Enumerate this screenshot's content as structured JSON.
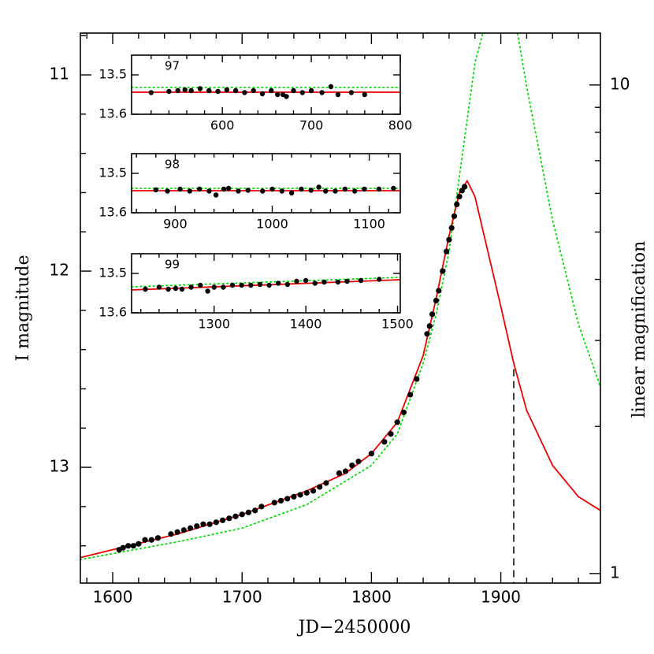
{
  "chart_data": [
    {
      "type": "line",
      "xlabel": "JD−2450000",
      "ylabel": "I magnitude",
      "y2label": "linear magnification",
      "xlim": [
        1575,
        1977
      ],
      "ylim": [
        13.59,
        10.787
      ],
      "xticks": [
        1600,
        1700,
        1800,
        1900
      ],
      "xminor": [
        1580,
        1620,
        1640,
        1660,
        1680,
        1720,
        1740,
        1760,
        1780,
        1820,
        1840,
        1860,
        1880,
        1920,
        1940,
        1960
      ],
      "yticks": [
        11,
        12,
        13
      ],
      "yminor": [
        10.8,
        11.2,
        11.4,
        11.6,
        11.8,
        12.2,
        12.4,
        12.6,
        12.8,
        13.2,
        13.4
      ],
      "y2scale": "log",
      "y2lim": [
        0.956,
        12.77
      ],
      "y2ticks": [
        1,
        10
      ],
      "y2minor": [
        2,
        3,
        4,
        5,
        6,
        7,
        8,
        9
      ],
      "series": [
        {
          "style": "dotted",
          "color": "#00dd00",
          "x": [
            1575,
            1600,
            1650,
            1700,
            1750,
            1800,
            1820,
            1840,
            1850,
            1860,
            1870,
            1880,
            1886,
            1900,
            1913,
            1920,
            1940,
            1960,
            1977
          ],
          "values": [
            13.47,
            13.44,
            13.38,
            13.31,
            13.19,
            12.99,
            12.83,
            12.47,
            12.22,
            11.9,
            11.42,
            10.94,
            10.79,
            null,
            10.79,
            11.06,
            11.74,
            12.27,
            12.59
          ]
        },
        {
          "style": "solid",
          "color": "#ee0000",
          "x": [
            1575,
            1600,
            1650,
            1700,
            1750,
            1780,
            1800,
            1820,
            1840,
            1850,
            1860,
            1868,
            1874,
            1880,
            1890,
            1900,
            1910,
            1920,
            1940,
            1960,
            1977
          ],
          "values": [
            13.46,
            13.42,
            13.34,
            13.24,
            13.12,
            13.03,
            12.93,
            12.77,
            12.43,
            12.14,
            11.82,
            11.6,
            11.54,
            11.62,
            11.9,
            12.18,
            12.47,
            12.71,
            12.99,
            13.15,
            13.22
          ]
        },
        {
          "style": "points",
          "color": "#000000",
          "x": [
            1605,
            1608,
            1612,
            1616,
            1620,
            1625,
            1630,
            1635,
            1645,
            1650,
            1655,
            1660,
            1665,
            1670,
            1675,
            1680,
            1685,
            1690,
            1695,
            1700,
            1705,
            1710,
            1715,
            1725,
            1730,
            1735,
            1740,
            1745,
            1750,
            1755,
            1760,
            1765,
            1775,
            1780,
            1785,
            1790,
            1800,
            1810,
            1815,
            1820,
            1825,
            1830,
            1835,
            1843,
            1845,
            1847,
            1850,
            1852,
            1855,
            1858,
            1860,
            1862,
            1864,
            1866,
            1868,
            1870,
            1872
          ],
          "values": [
            13.42,
            13.41,
            13.4,
            13.4,
            13.39,
            13.37,
            13.37,
            13.36,
            13.34,
            13.33,
            13.32,
            13.31,
            13.3,
            13.29,
            13.29,
            13.28,
            13.27,
            13.26,
            13.25,
            13.24,
            13.23,
            13.22,
            13.2,
            13.18,
            13.17,
            13.16,
            13.15,
            13.14,
            13.13,
            13.12,
            13.1,
            13.08,
            13.03,
            13.02,
            12.99,
            12.97,
            12.93,
            12.87,
            12.83,
            12.77,
            12.72,
            12.63,
            12.55,
            12.32,
            12.28,
            12.22,
            12.15,
            12.1,
            12.0,
            11.9,
            11.84,
            11.78,
            11.72,
            11.66,
            11.62,
            11.59,
            11.57
          ]
        }
      ],
      "vline": {
        "x": 1910,
        "top": 12.5
      }
    },
    {
      "type": "line",
      "label": "97",
      "xlim": [
        498,
        800
      ],
      "ylim": [
        13.6,
        13.45
      ],
      "xticks": [
        600,
        700,
        800
      ],
      "xminor": [
        520,
        540,
        560,
        580,
        620,
        640,
        660,
        680,
        720,
        740,
        760,
        780
      ],
      "yticks": [
        13.5,
        13.6
      ],
      "series": [
        {
          "style": "dotted",
          "color": "#00dd00",
          "x": [
            498,
            800
          ],
          "values": [
            13.532,
            13.532
          ]
        },
        {
          "style": "solid",
          "color": "#ee0000",
          "x": [
            498,
            800
          ],
          "values": [
            13.544,
            13.544
          ]
        },
        {
          "style": "points",
          "color": "#000000",
          "x": [
            520,
            540,
            550,
            558,
            565,
            575,
            585,
            595,
            605,
            615,
            625,
            635,
            645,
            655,
            662,
            668,
            672,
            680,
            690,
            700,
            712,
            722,
            730,
            745,
            760
          ],
          "values": [
            13.545,
            13.542,
            13.54,
            13.538,
            13.54,
            13.535,
            13.54,
            13.542,
            13.538,
            13.54,
            13.545,
            13.54,
            13.548,
            13.54,
            13.55,
            13.55,
            13.555,
            13.54,
            13.545,
            13.54,
            13.545,
            13.53,
            13.55,
            13.545,
            13.55
          ]
        }
      ]
    },
    {
      "type": "line",
      "label": "98",
      "xlim": [
        855,
        1132
      ],
      "ylim": [
        13.6,
        13.45
      ],
      "xticks": [
        900,
        1000,
        1100
      ],
      "xminor": [
        860,
        880,
        920,
        940,
        960,
        980,
        1020,
        1040,
        1060,
        1080,
        1120
      ],
      "yticks": [
        13.5,
        13.6
      ],
      "series": [
        {
          "style": "dotted",
          "color": "#00dd00",
          "x": [
            855,
            1132
          ],
          "values": [
            13.538,
            13.538
          ]
        },
        {
          "style": "solid",
          "color": "#ee0000",
          "x": [
            855,
            1132
          ],
          "values": [
            13.544,
            13.544
          ]
        },
        {
          "style": "points",
          "color": "#000000",
          "x": [
            880,
            892,
            905,
            915,
            925,
            935,
            942,
            950,
            955,
            965,
            975,
            990,
            1000,
            1010,
            1020,
            1030,
            1040,
            1048,
            1055,
            1065,
            1075,
            1085,
            1095,
            1110,
            1125
          ],
          "values": [
            13.542,
            13.545,
            13.54,
            13.545,
            13.54,
            13.545,
            13.555,
            13.54,
            13.538,
            13.545,
            13.543,
            13.545,
            13.54,
            13.545,
            13.55,
            13.54,
            13.543,
            13.535,
            13.545,
            13.545,
            13.54,
            13.545,
            13.54,
            13.54,
            13.538
          ]
        }
      ]
    },
    {
      "type": "line",
      "label": "99",
      "xlim": [
        1210,
        1503
      ],
      "ylim": [
        13.6,
        13.45
      ],
      "xticks": [
        1300,
        1400,
        1500
      ],
      "xminor": [
        1220,
        1240,
        1260,
        1280,
        1320,
        1340,
        1360,
        1380,
        1420,
        1440,
        1460,
        1480
      ],
      "yticks": [
        13.5,
        13.6
      ],
      "series": [
        {
          "style": "dotted",
          "color": "#00dd00",
          "x": [
            1210,
            1503
          ],
          "values": [
            13.534,
            13.51
          ]
        },
        {
          "style": "solid",
          "color": "#ee0000",
          "x": [
            1210,
            1503
          ],
          "values": [
            13.542,
            13.516
          ]
        },
        {
          "style": "points",
          "color": "#000000",
          "x": [
            1225,
            1240,
            1250,
            1258,
            1265,
            1275,
            1285,
            1293,
            1300,
            1310,
            1320,
            1330,
            1340,
            1350,
            1360,
            1370,
            1380,
            1390,
            1400,
            1410,
            1420,
            1435,
            1445,
            1460,
            1480
          ],
          "values": [
            13.54,
            13.535,
            13.54,
            13.538,
            13.54,
            13.535,
            13.53,
            13.545,
            13.535,
            13.535,
            13.53,
            13.53,
            13.53,
            13.528,
            13.53,
            13.525,
            13.528,
            13.52,
            13.518,
            13.525,
            13.522,
            13.522,
            13.52,
            13.518,
            13.515
          ]
        }
      ]
    }
  ]
}
